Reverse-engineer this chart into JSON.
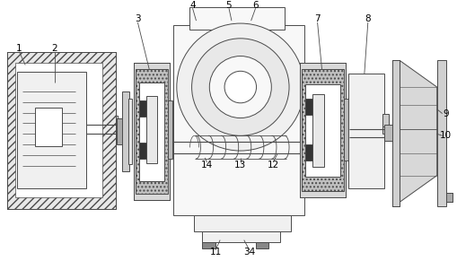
{
  "background_color": "#ffffff",
  "line_color": "#4a4a4a",
  "label_color": "#000000",
  "fig_width": 5.09,
  "fig_height": 2.91,
  "dpi": 100
}
